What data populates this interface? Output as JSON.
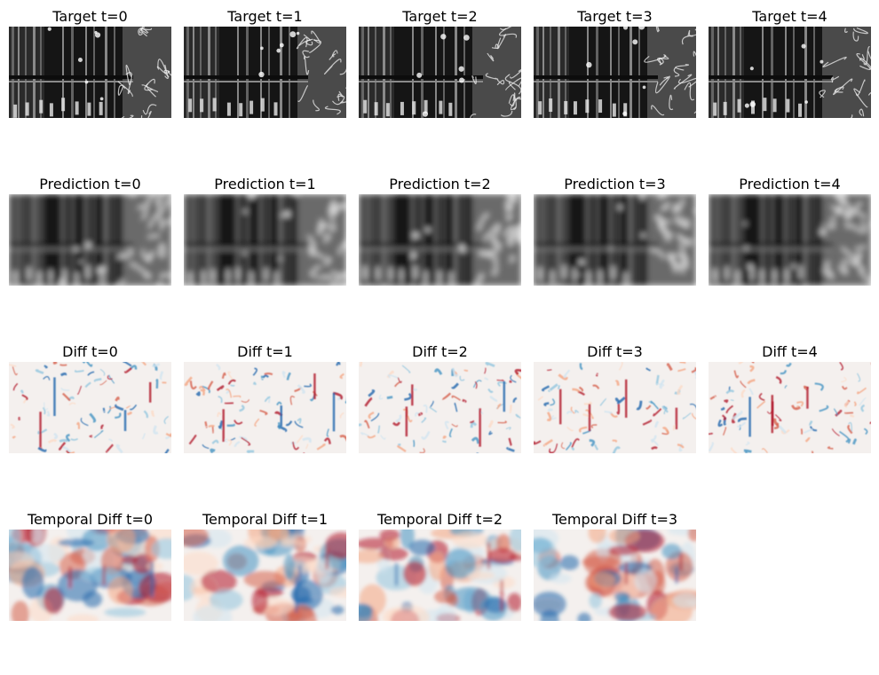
{
  "rows": [
    {
      "name": "target",
      "colormap": "gray",
      "titles": [
        "Target t=0",
        "Target t=1",
        "Target t=2",
        "Target t=3",
        "Target t=4"
      ]
    },
    {
      "name": "prediction",
      "colormap": "gray",
      "titles": [
        "Prediction t=0",
        "Prediction t=1",
        "Prediction t=2",
        "Prediction t=3",
        "Prediction t=4"
      ]
    },
    {
      "name": "diff",
      "colormap": "RdBu",
      "titles": [
        "Diff t=0",
        "Diff t=1",
        "Diff t=2",
        "Diff t=3",
        "Diff t=4"
      ]
    },
    {
      "name": "temporal-diff",
      "colormap": "RdBu",
      "titles": [
        "Temporal Diff t=0",
        "Temporal Diff t=1",
        "Temporal Diff t=2",
        "Temporal Diff t=3"
      ]
    }
  ]
}
